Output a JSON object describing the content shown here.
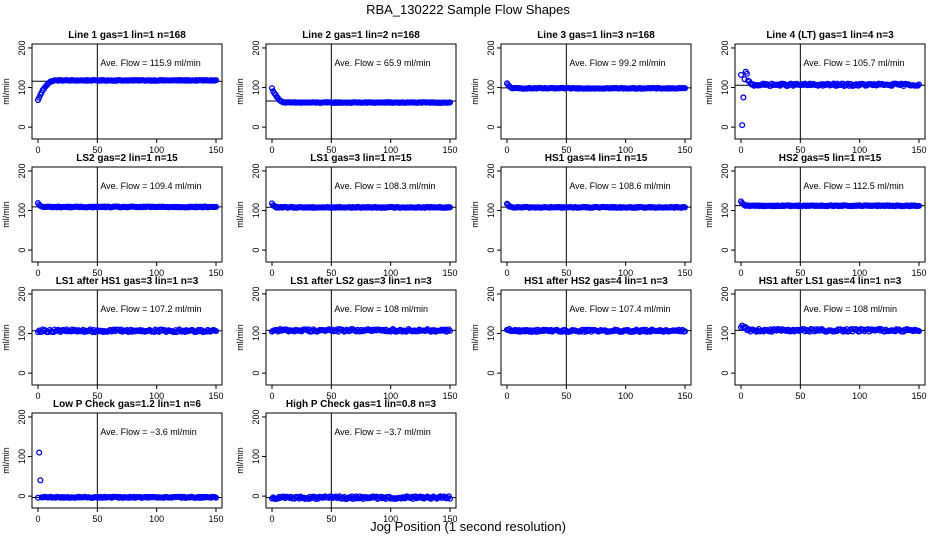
{
  "figure": {
    "title": "RBA_130222  Sample Flow Shapes",
    "xlabel": "Jog Position (1 second resolution)"
  },
  "colors": {
    "points": "#0000ff",
    "axis": "#000000"
  },
  "chart_data": [
    {
      "type": "scatter",
      "title": "Line 1 gas=1 lin=1 n=168",
      "annotation": "Ave. Flow = 115.9  ml/min",
      "hline": 115.9,
      "ylabel": "ml/min",
      "xlim": [
        0,
        150
      ],
      "ylim": [
        -30,
        210
      ],
      "xticks": [
        0,
        50,
        100,
        150
      ],
      "yticks": [
        0,
        100,
        200
      ],
      "vline": 50,
      "shape": "rise",
      "start": 68,
      "settle": 118,
      "settle_x": 15,
      "noise": 1
    },
    {
      "type": "scatter",
      "title": "Line 2 gas=1 lin=2 n=168",
      "annotation": "Ave. Flow = 65.9  ml/min",
      "hline": 65.9,
      "ylabel": "ml/min",
      "xlim": [
        0,
        150
      ],
      "ylim": [
        -30,
        210
      ],
      "xticks": [
        0,
        50,
        100,
        150
      ],
      "yticks": [
        0,
        100,
        200
      ],
      "vline": 50,
      "shape": "fall",
      "start": 98,
      "settle": 62,
      "settle_x": 12,
      "noise": 1
    },
    {
      "type": "scatter",
      "title": "Line 3 gas=1 lin=3 n=168",
      "annotation": "Ave. Flow = 99.2  ml/min",
      "hline": 99.2,
      "ylabel": "ml/min",
      "xlim": [
        0,
        150
      ],
      "ylim": [
        -30,
        210
      ],
      "xticks": [
        0,
        50,
        100,
        150
      ],
      "yticks": [
        0,
        100,
        200
      ],
      "vline": 50,
      "shape": "fall",
      "start": 110,
      "settle": 98,
      "settle_x": 6,
      "noise": 1
    },
    {
      "type": "scatter",
      "title": "Line 4 (LT) gas=1 lin=4 n=3",
      "annotation": "Ave. Flow = 105.7  ml/min",
      "hline": 105.7,
      "ylabel": "ml/min",
      "xlim": [
        0,
        150
      ],
      "ylim": [
        -30,
        210
      ],
      "xticks": [
        0,
        50,
        100,
        150
      ],
      "yticks": [
        0,
        100,
        200
      ],
      "vline": 50,
      "shape": "spike",
      "start": 130,
      "settle": 107,
      "settle_x": 10,
      "noise": 3,
      "outliers": [
        [
          1,
          5
        ],
        [
          2,
          75
        ],
        [
          4,
          140
        ],
        [
          5,
          135
        ]
      ]
    },
    {
      "type": "scatter",
      "title": "LS2 gas=2 lin=1 n=15",
      "annotation": "Ave. Flow = 109.4  ml/min",
      "hline": 109.4,
      "ylabel": "ml/min",
      "xlim": [
        0,
        150
      ],
      "ylim": [
        -30,
        210
      ],
      "xticks": [
        0,
        50,
        100,
        150
      ],
      "yticks": [
        0,
        100,
        200
      ],
      "vline": 50,
      "shape": "fall",
      "start": 118,
      "settle": 109,
      "settle_x": 5,
      "noise": 1.2
    },
    {
      "type": "scatter",
      "title": "LS1 gas=3 lin=1 n=15",
      "annotation": "Ave. Flow = 108.3  ml/min",
      "hline": 108.3,
      "ylabel": "ml/min",
      "xlim": [
        0,
        150
      ],
      "ylim": [
        -30,
        210
      ],
      "xticks": [
        0,
        50,
        100,
        150
      ],
      "yticks": [
        0,
        100,
        200
      ],
      "vline": 50,
      "shape": "fall",
      "start": 117,
      "settle": 108,
      "settle_x": 5,
      "noise": 1.2
    },
    {
      "type": "scatter",
      "title": "HS1 gas=4 lin=1 n=15",
      "annotation": "Ave. Flow = 108.6  ml/min",
      "hline": 108.6,
      "ylabel": "ml/min",
      "xlim": [
        0,
        150
      ],
      "ylim": [
        -30,
        210
      ],
      "xticks": [
        0,
        50,
        100,
        150
      ],
      "yticks": [
        0,
        100,
        200
      ],
      "vline": 50,
      "shape": "fall",
      "start": 116,
      "settle": 108,
      "settle_x": 5,
      "noise": 1.2
    },
    {
      "type": "scatter",
      "title": "HS2 gas=5 lin=1 n=15",
      "annotation": "Ave. Flow = 112.5  ml/min",
      "hline": 112.5,
      "ylabel": "ml/min",
      "xlim": [
        0,
        150
      ],
      "ylim": [
        -30,
        210
      ],
      "xticks": [
        0,
        50,
        100,
        150
      ],
      "yticks": [
        0,
        100,
        200
      ],
      "vline": 50,
      "shape": "fall",
      "start": 122,
      "settle": 112,
      "settle_x": 5,
      "noise": 1.2
    },
    {
      "type": "scatter",
      "title": "LS1 after HS1 gas=3 lin=1 n=3",
      "annotation": "Ave. Flow = 107.2  ml/min",
      "hline": 107.2,
      "ylabel": "ml/min",
      "xlim": [
        0,
        150
      ],
      "ylim": [
        -30,
        210
      ],
      "xticks": [
        0,
        50,
        100,
        150
      ],
      "yticks": [
        0,
        100,
        200
      ],
      "vline": 50,
      "shape": "flat",
      "start": 107,
      "settle": 107,
      "settle_x": 0,
      "noise": 3.5
    },
    {
      "type": "scatter",
      "title": "LS1 after LS2 gas=3 lin=1 n=3",
      "annotation": "Ave. Flow = 108  ml/min",
      "hline": 108,
      "ylabel": "ml/min",
      "xlim": [
        0,
        150
      ],
      "ylim": [
        -30,
        210
      ],
      "xticks": [
        0,
        50,
        100,
        150
      ],
      "yticks": [
        0,
        100,
        200
      ],
      "vline": 50,
      "shape": "flat",
      "start": 108,
      "settle": 108,
      "settle_x": 0,
      "noise": 3.5
    },
    {
      "type": "scatter",
      "title": "HS1 after HS2 gas=4 lin=1 n=3",
      "annotation": "Ave. Flow = 107.4  ml/min",
      "hline": 107.4,
      "ylabel": "ml/min",
      "xlim": [
        0,
        150
      ],
      "ylim": [
        -30,
        210
      ],
      "xticks": [
        0,
        50,
        100,
        150
      ],
      "yticks": [
        0,
        100,
        200
      ],
      "vline": 50,
      "shape": "fall",
      "start": 112,
      "settle": 107,
      "settle_x": 6,
      "noise": 3
    },
    {
      "type": "scatter",
      "title": "HS1 after LS1 gas=4 lin=1 n=3",
      "annotation": "Ave. Flow = 108  ml/min",
      "hline": 108,
      "ylabel": "ml/min",
      "xlim": [
        0,
        150
      ],
      "ylim": [
        -30,
        210
      ],
      "xticks": [
        0,
        50,
        100,
        150
      ],
      "yticks": [
        0,
        100,
        200
      ],
      "vline": 50,
      "shape": "spike",
      "start": 118,
      "settle": 108,
      "settle_x": 8,
      "noise": 3.5
    },
    {
      "type": "scatter",
      "title": "Low P Check gas=1.2 lin=1 n=6",
      "annotation": "Ave. Flow = −3.6  ml/min",
      "hline": -3.6,
      "ylabel": "ml/min",
      "xlim": [
        0,
        150
      ],
      "ylim": [
        -30,
        210
      ],
      "xticks": [
        0,
        50,
        100,
        150
      ],
      "yticks": [
        0,
        100,
        200
      ],
      "vline": 50,
      "shape": "flat",
      "start": -3,
      "settle": -3,
      "settle_x": 0,
      "noise": 1.5,
      "outliers": [
        [
          1,
          110
        ],
        [
          2,
          40
        ]
      ]
    },
    {
      "type": "scatter",
      "title": "High P Check gas=1 lin=0.8 n=3",
      "annotation": "Ave. Flow = −3.7  ml/min",
      "hline": -3.7,
      "ylabel": "ml/min",
      "xlim": [
        0,
        150
      ],
      "ylim": [
        -30,
        210
      ],
      "xticks": [
        0,
        50,
        100,
        150
      ],
      "yticks": [
        0,
        100,
        200
      ],
      "vline": 50,
      "shape": "flat",
      "start": -4,
      "settle": -4,
      "settle_x": 0,
      "noise": 3.5
    }
  ]
}
